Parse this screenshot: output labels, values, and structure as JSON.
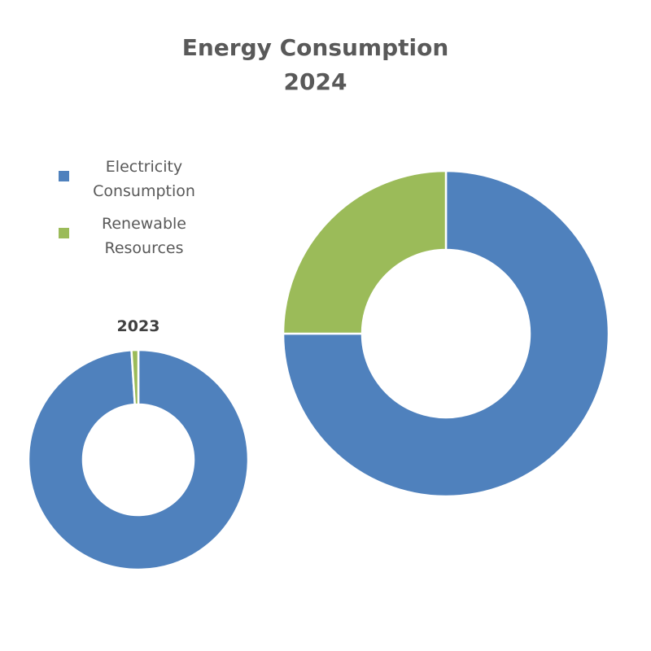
{
  "chart_data": [
    {
      "type": "donut",
      "title": "Energy Consumption",
      "subtitle": "2024",
      "categories": [
        "Electricity Consumption",
        "Renewable Resources"
      ],
      "values": [
        75,
        25
      ],
      "unit": "%"
    },
    {
      "type": "donut",
      "title": "2023",
      "categories": [
        "Electricity Consumption",
        "Renewable Resources"
      ],
      "values": [
        99,
        1
      ],
      "unit": "%"
    }
  ],
  "legend": {
    "items": [
      {
        "label_line1": "Electricity",
        "label_line2": "Consumption",
        "color": "#4F81BD"
      },
      {
        "label_line1": "Renewable",
        "label_line2": "Resources",
        "color": "#9BBB59"
      }
    ]
  }
}
